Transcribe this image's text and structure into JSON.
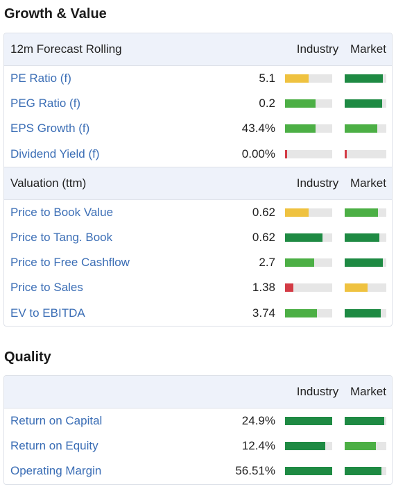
{
  "colors": {
    "dark_green": "#1e8a43",
    "green": "#4caf45",
    "yellow": "#efc240",
    "red": "#d33b45",
    "link": "#3a6db5"
  },
  "growth": {
    "title": "Growth & Value",
    "forecast": {
      "header": {
        "label": "12m Forecast Rolling",
        "industry": "Industry",
        "market": "Market"
      },
      "rows": [
        {
          "label": "PE Ratio (f)",
          "value": "5.1",
          "industry": {
            "level": 0.5,
            "color": "yellow"
          },
          "market": {
            "level": 0.92,
            "color": "dark_green"
          }
        },
        {
          "label": "PEG Ratio (f)",
          "value": "0.2",
          "industry": {
            "level": 0.65,
            "color": "green"
          },
          "market": {
            "level": 0.9,
            "color": "dark_green"
          }
        },
        {
          "label": "EPS Growth (f)",
          "value": "43.4%",
          "industry": {
            "level": 0.65,
            "color": "green"
          },
          "market": {
            "level": 0.78,
            "color": "green"
          }
        },
        {
          "label": "Dividend Yield (f)",
          "value": "0.00%",
          "industry": {
            "level": 0.04,
            "color": "red"
          },
          "market": {
            "level": 0.05,
            "color": "red"
          }
        }
      ]
    },
    "valuation": {
      "header": {
        "label": "Valuation (ttm)",
        "industry": "Industry",
        "market": "Market"
      },
      "rows": [
        {
          "label": "Price to Book Value",
          "value": "0.62",
          "industry": {
            "level": 0.5,
            "color": "yellow"
          },
          "market": {
            "level": 0.8,
            "color": "green"
          }
        },
        {
          "label": "Price to Tang. Book",
          "value": "0.62",
          "industry": {
            "level": 0.8,
            "color": "dark_green"
          },
          "market": {
            "level": 0.83,
            "color": "dark_green"
          }
        },
        {
          "label": "Price to Free Cashflow",
          "value": "2.7",
          "industry": {
            "level": 0.62,
            "color": "green"
          },
          "market": {
            "level": 0.92,
            "color": "dark_green"
          }
        },
        {
          "label": "Price to Sales",
          "value": "1.38",
          "industry": {
            "level": 0.18,
            "color": "red"
          },
          "market": {
            "level": 0.55,
            "color": "yellow"
          }
        },
        {
          "label": "EV to EBITDA",
          "value": "3.74",
          "industry": {
            "level": 0.67,
            "color": "green"
          },
          "market": {
            "level": 0.86,
            "color": "dark_green"
          }
        }
      ]
    }
  },
  "quality": {
    "title": "Quality",
    "header": {
      "label": "",
      "industry": "Industry",
      "market": "Market"
    },
    "rows": [
      {
        "label": "Return on Capital",
        "value": "24.9%",
        "industry": {
          "level": 1.0,
          "color": "dark_green"
        },
        "market": {
          "level": 0.95,
          "color": "dark_green"
        }
      },
      {
        "label": "Return on Equity",
        "value": "12.4%",
        "industry": {
          "level": 0.85,
          "color": "dark_green"
        },
        "market": {
          "level": 0.75,
          "color": "green"
        }
      },
      {
        "label": "Operating Margin",
        "value": "56.51%",
        "industry": {
          "level": 1.0,
          "color": "dark_green"
        },
        "market": {
          "level": 0.88,
          "color": "dark_green"
        }
      }
    ]
  }
}
